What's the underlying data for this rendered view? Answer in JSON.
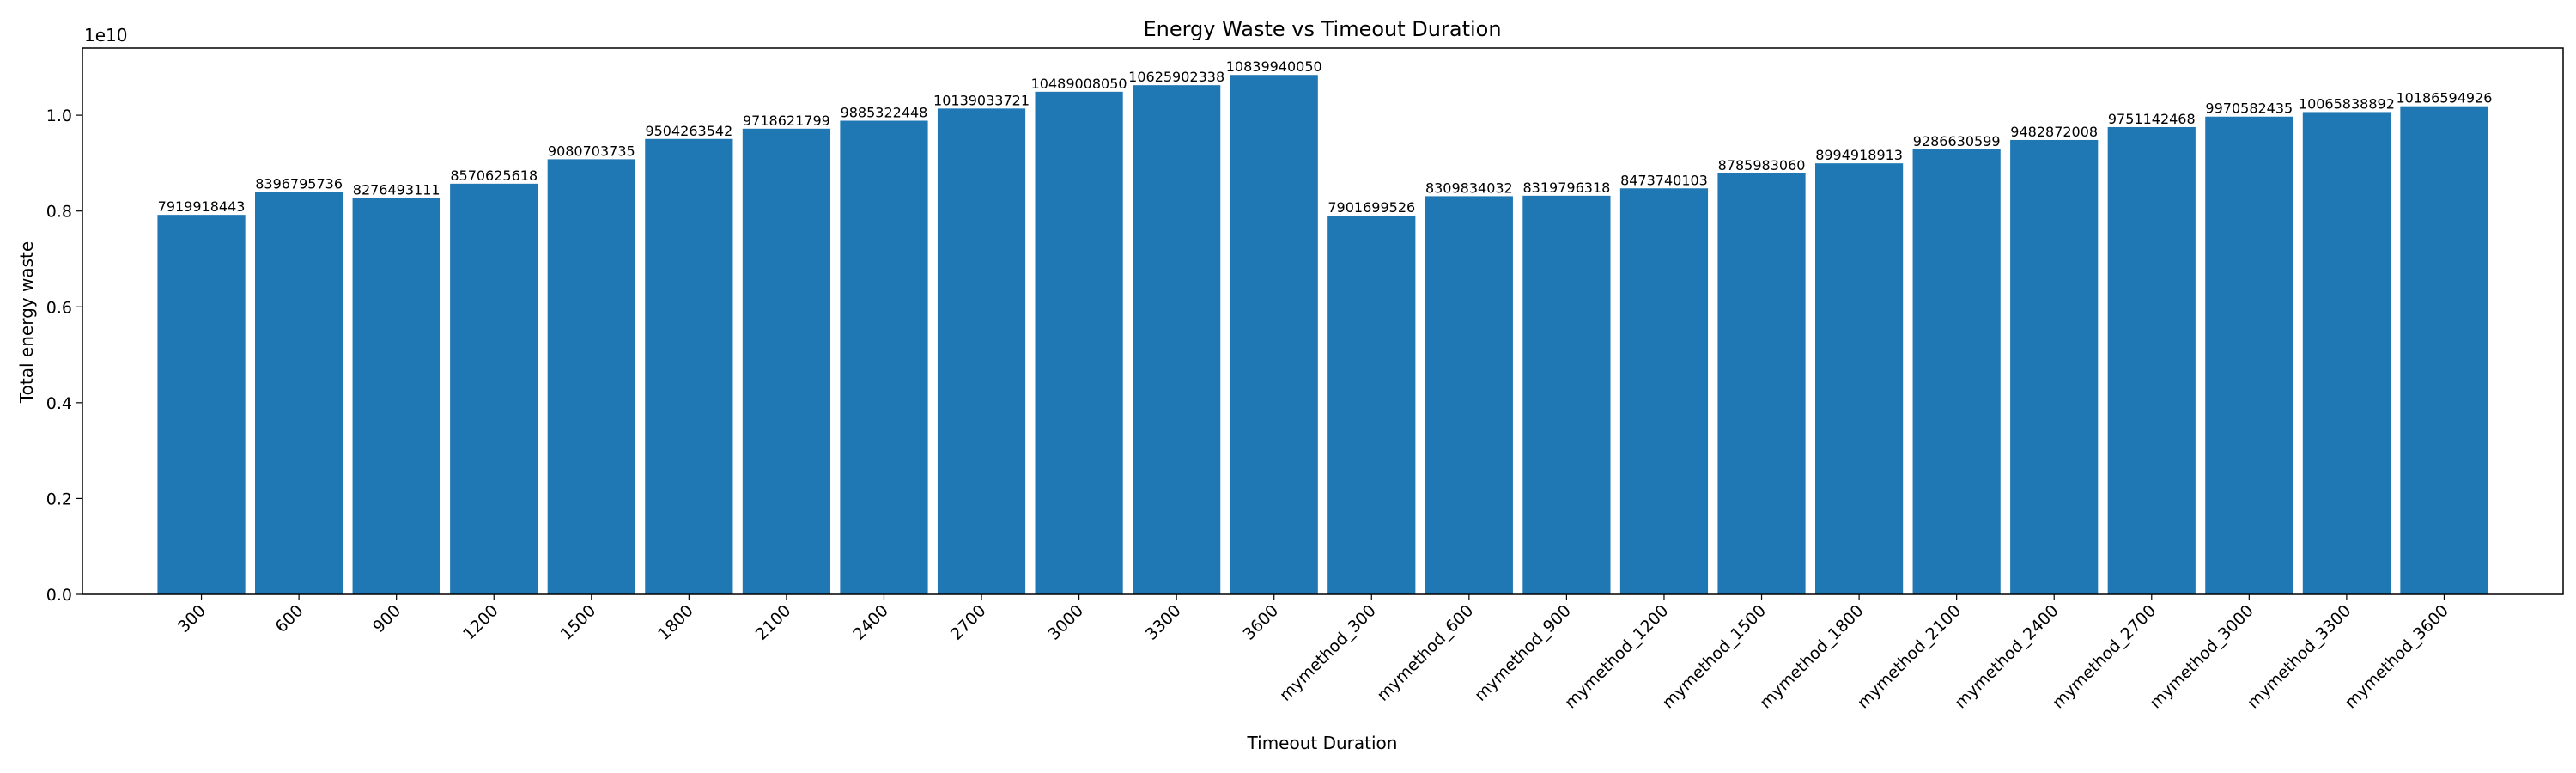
{
  "chart_data": {
    "type": "bar",
    "title": "Energy Waste vs Timeout Duration",
    "xlabel": "Timeout Duration",
    "ylabel": "Total energy waste",
    "y_offset_label": "1e10",
    "y_scale": 10000000000,
    "ylim": [
      0,
      11400000000
    ],
    "yticks": [
      0.0,
      0.2,
      0.4,
      0.6,
      0.8,
      1.0
    ],
    "ytick_labels": [
      "0.0",
      "0.2",
      "0.4",
      "0.6",
      "0.8",
      "1.0"
    ],
    "grid": false,
    "legend": "none",
    "bar_color": "#1f77b4",
    "categories": [
      "300",
      "600",
      "900",
      "1200",
      "1500",
      "1800",
      "2100",
      "2400",
      "2700",
      "3000",
      "3300",
      "3600",
      "mymethod_300",
      "mymethod_600",
      "mymethod_900",
      "mymethod_1200",
      "mymethod_1500",
      "mymethod_1800",
      "mymethod_2100",
      "mymethod_2400",
      "mymethod_2700",
      "mymethod_3000",
      "mymethod_3300",
      "mymethod_3600"
    ],
    "values": [
      7919918443,
      8396795736,
      8276493111,
      8570625618,
      9080703735,
      9504263542,
      9718621799,
      9885322448,
      10139033721,
      10489008050,
      10625902338,
      10839940050,
      7901699526,
      8309834032,
      8319796318,
      8473740103,
      8785983060,
      8994918913,
      9286630599,
      9482872008,
      9751142468,
      9970582435,
      10065838892,
      10186594926
    ]
  }
}
